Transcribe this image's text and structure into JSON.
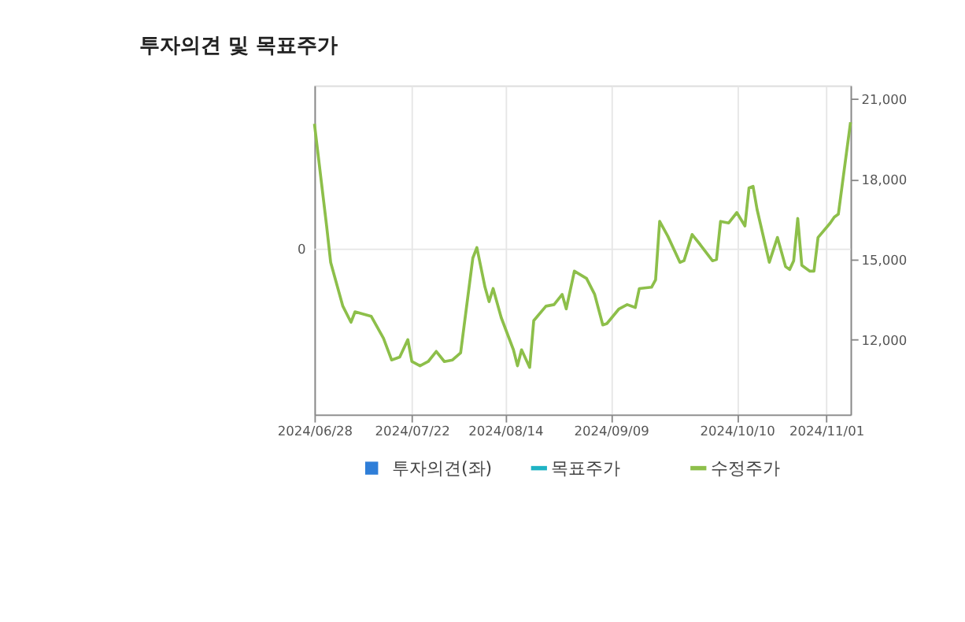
{
  "chart_data": {
    "type": "line",
    "title": "투자의견 및 목표주가",
    "x": [
      "2024-06-28",
      "2024-07-01",
      "2024-07-02",
      "2024-07-05",
      "2024-07-07",
      "2024-07-08",
      "2024-07-12",
      "2024-07-15",
      "2024-07-17",
      "2024-07-19",
      "2024-07-21",
      "2024-07-22",
      "2024-07-24",
      "2024-07-26",
      "2024-07-28",
      "2024-07-30",
      "2024-08-01",
      "2024-08-03",
      "2024-08-06",
      "2024-08-07",
      "2024-08-09",
      "2024-08-10",
      "2024-08-11",
      "2024-08-13",
      "2024-08-16",
      "2024-08-17",
      "2024-08-18",
      "2024-08-20",
      "2024-08-21",
      "2024-08-24",
      "2024-08-26",
      "2024-08-28",
      "2024-08-29",
      "2024-08-31",
      "2024-09-03",
      "2024-09-05",
      "2024-09-07",
      "2024-09-08",
      "2024-09-11",
      "2024-09-13",
      "2024-09-15",
      "2024-09-16",
      "2024-09-19",
      "2024-09-20",
      "2024-09-21",
      "2024-09-23",
      "2024-09-26",
      "2024-09-27",
      "2024-09-29",
      "2024-10-01",
      "2024-10-04",
      "2024-10-05",
      "2024-10-06",
      "2024-10-08",
      "2024-10-10",
      "2024-10-12",
      "2024-10-13",
      "2024-10-14",
      "2024-10-15",
      "2024-10-18",
      "2024-10-20",
      "2024-10-22",
      "2024-10-23",
      "2024-10-24",
      "2024-10-25",
      "2024-10-26",
      "2024-10-28",
      "2024-10-29",
      "2024-10-30",
      "2024-11-02",
      "2024-11-03",
      "2024-11-04",
      "2024-11-05",
      "2024-11-06",
      "2024-11-07"
    ],
    "series": [
      {
        "name": "투자의견(좌)",
        "type": "bar",
        "color": "#2f7ed8",
        "values": [
          null,
          null,
          null,
          null,
          null,
          null,
          null,
          null,
          null,
          null,
          null,
          null,
          null,
          null,
          null,
          null,
          null,
          null,
          null,
          null,
          null,
          null,
          null,
          null,
          null,
          null,
          null,
          null,
          null,
          null,
          null,
          null,
          null,
          null,
          null,
          null,
          null,
          null,
          null,
          null,
          null,
          null,
          null,
          null,
          null,
          null,
          null,
          null,
          null,
          null,
          null,
          null,
          null,
          null,
          null,
          null,
          null,
          null,
          null,
          null,
          null,
          null,
          null,
          null,
          null,
          null,
          null,
          null,
          null,
          null,
          null,
          null,
          null,
          null,
          null
        ]
      },
      {
        "name": "목표주가",
        "type": "line",
        "axis": "y2",
        "color": "#1fb3c4",
        "values": [
          null,
          null,
          null,
          null,
          null,
          null,
          null,
          null,
          null,
          null,
          null,
          null,
          null,
          null,
          null,
          null,
          null,
          null,
          null,
          null,
          null,
          null,
          null,
          null,
          null,
          null,
          null,
          null,
          null,
          null,
          null,
          null,
          null,
          null,
          null,
          null,
          null,
          null,
          null,
          null,
          null,
          null,
          null,
          null,
          null,
          null,
          null,
          null,
          null,
          null,
          null,
          null,
          null,
          null,
          null,
          null,
          null,
          null,
          null,
          null,
          null,
          null,
          null,
          null,
          null,
          null,
          null,
          null,
          null,
          null,
          null,
          null,
          null,
          null,
          null
        ]
      },
      {
        "name": "수정주가",
        "axis": "y2",
        "color": "#8dbf4a",
        "values": [
          20070,
          16250,
          14890,
          13250,
          12650,
          13040,
          12870,
          12050,
          11240,
          11350,
          12000,
          11180,
          11020,
          11180,
          11560,
          11180,
          11240,
          11510,
          15050,
          15440,
          13960,
          13420,
          13910,
          12820,
          11620,
          11020,
          11620,
          10960,
          12710,
          13250,
          13310,
          13690,
          13150,
          14560,
          14290,
          13690,
          12550,
          12600,
          13150,
          13310,
          13200,
          13910,
          13960,
          14240,
          16420,
          15870,
          14890,
          14950,
          15930,
          15550,
          14950,
          15000,
          16420,
          16360,
          16750,
          16250,
          17670,
          17730,
          16860,
          14890,
          15820,
          14730,
          14620,
          14950,
          16530,
          14780,
          14560,
          14560,
          15820,
          16360,
          16580,
          16690,
          17840,
          18990,
          20130
        ]
      }
    ],
    "xlim": [
      "2024-06-28",
      "2024-11-07"
    ],
    "xticks": [
      {
        "value": "2024-06-28",
        "label": "2024/06/28"
      },
      {
        "value": "2024-07-22",
        "label": "2024/07/22"
      },
      {
        "value": "2024-08-14",
        "label": "2024/08/14"
      },
      {
        "value": "2024-09-09",
        "label": "2024/09/09"
      },
      {
        "value": "2024-10-10",
        "label": "2024/10/10"
      },
      {
        "value": "2024-11-01",
        "label": "2024/11/01"
      }
    ],
    "annotations": [
      "0"
    ],
    "y2lim": [
      9200,
      21500
    ],
    "y2ticks": [
      {
        "value": 12000,
        "label": "12,000"
      },
      {
        "value": 15000,
        "label": "15,000"
      },
      {
        "value": 18000,
        "label": "18,000"
      },
      {
        "value": 21000,
        "label": "21,000"
      }
    ],
    "grid": true,
    "legend": "bottom",
    "marker": "none",
    "line_style": "solid"
  }
}
